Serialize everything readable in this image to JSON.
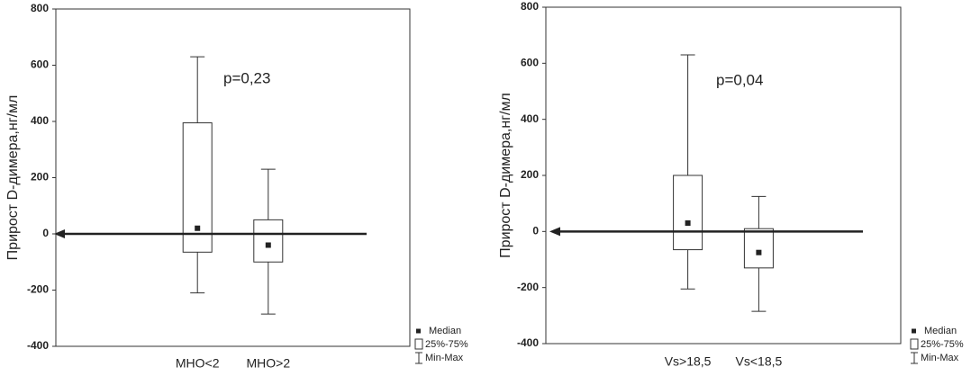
{
  "chart_data": [
    {
      "type": "box",
      "ylabel": "Прирост D-димера,нг/мл",
      "annotation": "p=0,23",
      "categories": [
        "МНО<2",
        "МНО>2"
      ],
      "boxes": [
        {
          "min": -210,
          "q1": -65,
          "median": 20,
          "q3": 395,
          "max": 630
        },
        {
          "min": -285,
          "q1": -100,
          "median": -40,
          "q3": 50,
          "max": 230
        }
      ],
      "reference_line": 0,
      "ylim": [
        -400,
        800
      ],
      "yticks": [
        -400,
        -200,
        0,
        200,
        400,
        600,
        800
      ],
      "legend": [
        "Median",
        "25%-75%",
        "Min-Max"
      ]
    },
    {
      "type": "box",
      "ylabel": "Прирост D-димера,нг/мл",
      "annotation": "p=0,04",
      "categories": [
        "Vs>18,5",
        "Vs<18,5"
      ],
      "boxes": [
        {
          "min": -205,
          "q1": -65,
          "median": 30,
          "q3": 200,
          "max": 630
        },
        {
          "min": -285,
          "q1": -130,
          "median": -75,
          "q3": 10,
          "max": 125
        }
      ],
      "reference_line": 0,
      "ylim": [
        -400,
        800
      ],
      "yticks": [
        -400,
        -200,
        0,
        200,
        400,
        600,
        800
      ],
      "legend": [
        "Median",
        "25%-75%",
        "Min-Max"
      ]
    }
  ]
}
